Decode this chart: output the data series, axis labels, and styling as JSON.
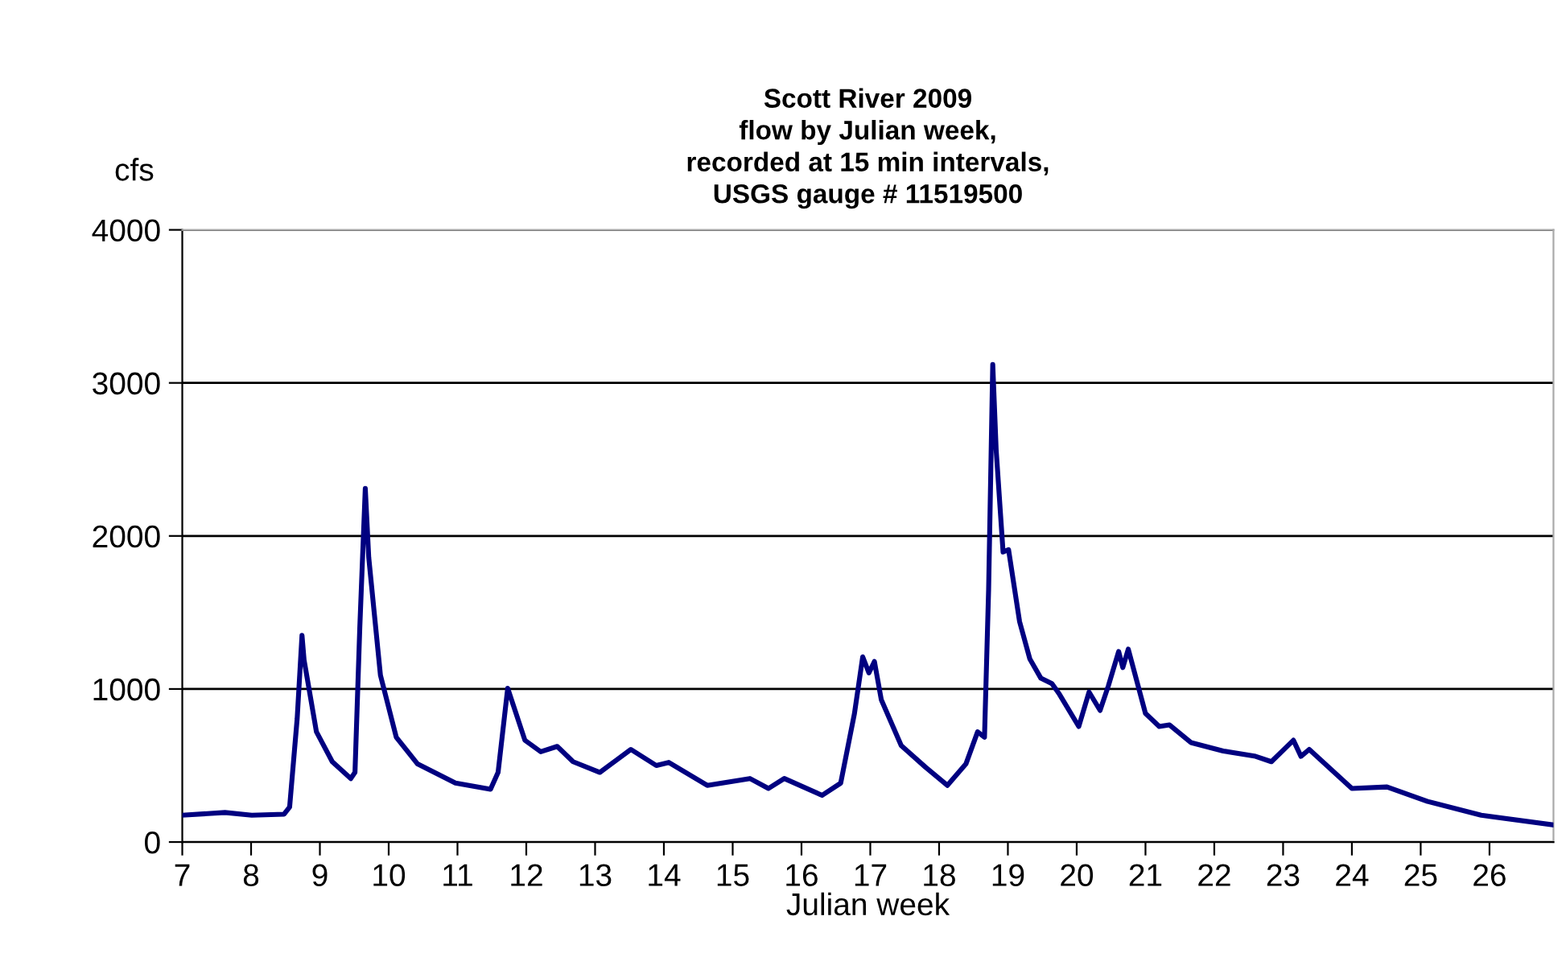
{
  "chart_data": {
    "type": "line",
    "title": "Scott River 2009\nflow by Julian week,\nrecorded at 15 min intervals,\nUSGS gauge # 11519500",
    "xlabel": "Julian week",
    "ylabel": "cfs",
    "x": [
      7.0,
      7.62,
      8.01,
      8.48,
      8.56,
      8.67,
      8.74,
      8.77,
      8.95,
      9.18,
      9.45,
      9.51,
      9.58,
      9.66,
      9.71,
      9.88,
      10.11,
      10.42,
      10.97,
      11.48,
      11.59,
      11.73,
      11.98,
      12.21,
      12.45,
      12.68,
      13.07,
      13.52,
      13.89,
      14.07,
      14.63,
      15.25,
      15.52,
      15.75,
      16.3,
      16.57,
      16.77,
      16.89,
      16.98,
      17.06,
      17.16,
      17.45,
      17.8,
      18.12,
      18.39,
      18.56,
      18.66,
      18.72,
      18.78,
      18.83,
      18.93,
      19.01,
      19.17,
      19.32,
      19.48,
      19.64,
      19.75,
      20.03,
      20.18,
      20.34,
      20.46,
      20.61,
      20.67,
      20.75,
      21.0,
      21.2,
      21.35,
      21.66,
      22.13,
      22.6,
      22.83,
      23.15,
      23.26,
      23.38,
      24.0,
      24.51,
      25.1,
      25.88,
      26.93
    ],
    "series": [
      {
        "color": "#000080",
        "values": [
          175,
          193,
          175,
          182,
          228,
          807,
          1350,
          1190,
          720,
          525,
          415,
          455,
          1400,
          2310,
          1860,
          1090,
          685,
          510,
          385,
          345,
          455,
          1005,
          665,
          590,
          625,
          525,
          455,
          605,
          500,
          520,
          370,
          415,
          350,
          415,
          305,
          385,
          840,
          1210,
          1105,
          1180,
          930,
          630,
          490,
          370,
          510,
          720,
          685,
          1650,
          3120,
          2560,
          1895,
          1910,
          1440,
          1195,
          1070,
          1035,
          965,
          755,
          980,
          860,
          1020,
          1245,
          1140,
          1260,
          840,
          755,
          765,
          650,
          595,
          560,
          525,
          665,
          560,
          605,
          350,
          360,
          265,
          175,
          112
        ]
      }
    ],
    "xlim": [
      7,
      26.93
    ],
    "xticks": [
      7,
      8,
      9,
      10,
      11,
      12,
      13,
      14,
      15,
      16,
      17,
      18,
      19,
      20,
      21,
      22,
      23,
      24,
      25,
      26
    ],
    "ylim": [
      0,
      4000
    ],
    "yticks": [
      0,
      1000,
      2000,
      3000,
      4000
    ],
    "grid": "y",
    "marker": "none",
    "line_style": "solid"
  }
}
